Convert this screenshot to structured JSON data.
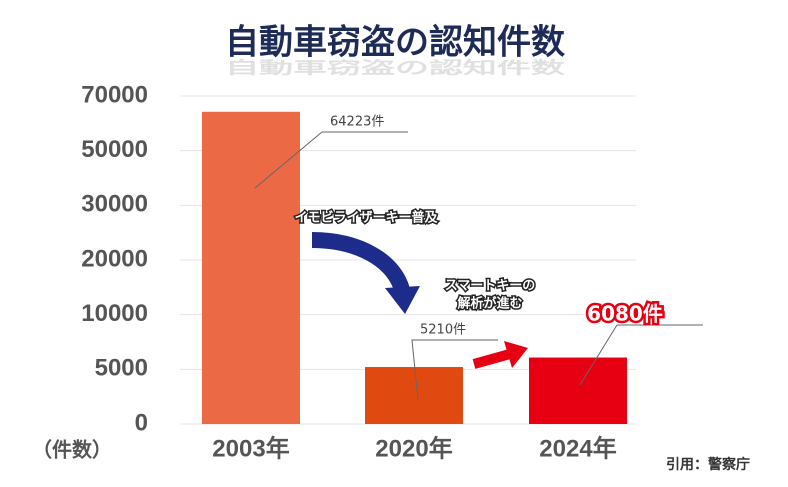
{
  "chart_data": {
    "type": "bar",
    "title": "自動車窃盗の認知件数",
    "y_label": "（件数）",
    "categories": [
      "2003年",
      "2020年",
      "2024年"
    ],
    "values": [
      64223,
      5210,
      6080
    ],
    "value_labels": [
      "64223件",
      "5210件",
      "6080件"
    ],
    "colors": [
      "#eb6a45",
      "#e04a10",
      "#e60012"
    ],
    "ylim": [
      0,
      70000
    ],
    "yticks": [
      0,
      5000,
      10000,
      20000,
      30000,
      50000,
      70000
    ],
    "grid": true,
    "annotations": [
      "イモビライザーキー普及",
      "スマートキーの",
      "解析が進む"
    ],
    "source": "引用：警察庁"
  }
}
